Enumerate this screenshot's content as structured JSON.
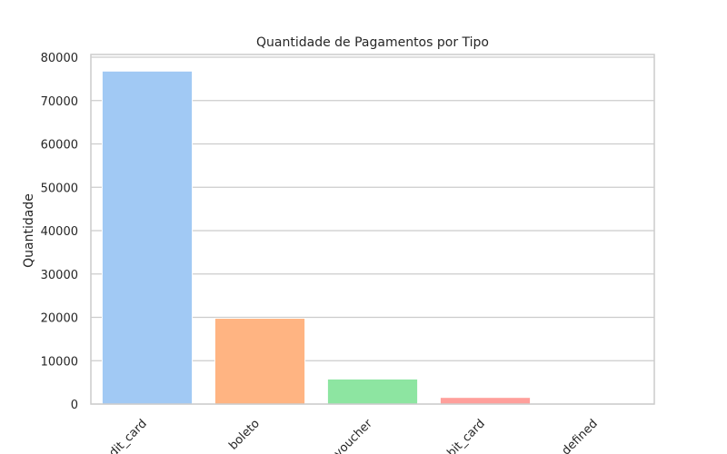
{
  "chart_data": {
    "type": "bar",
    "title": "Quantidade de Pagamentos por Tipo",
    "xlabel": "",
    "ylabel": "Quantidade",
    "categories": [
      "credit_card",
      "boleto",
      "voucher",
      "debit_card",
      "not_defined"
    ],
    "values": [
      76795,
      19784,
      5775,
      1529,
      3
    ],
    "ylim": [
      0,
      80000
    ],
    "yticks": [
      0,
      10000,
      20000,
      30000,
      40000,
      50000,
      60000,
      70000,
      80000
    ],
    "colors": [
      "#a1c9f4",
      "#ffb482",
      "#8de5a1",
      "#ff9f9b",
      "#d0bbff"
    ],
    "grid": true,
    "legend": "none"
  }
}
